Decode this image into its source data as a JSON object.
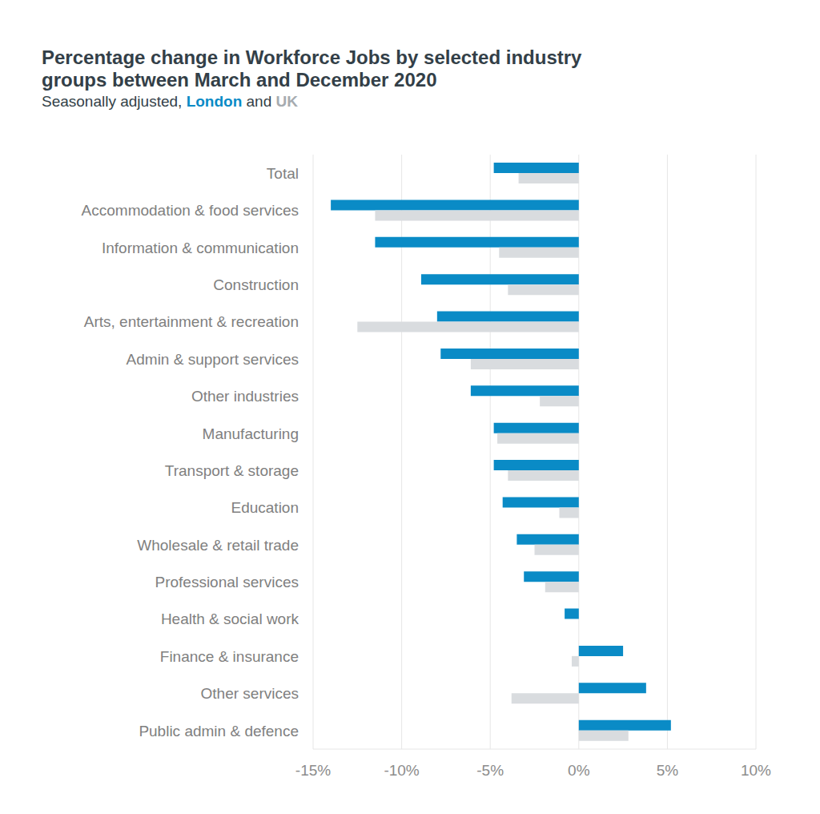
{
  "chart_data": {
    "type": "bar",
    "orientation": "horizontal",
    "title": "Percentage change in Workforce Jobs by selected industry groups between March and December 2020",
    "subtitle": "Seasonally adjusted, London and UK",
    "categories": [
      "Total",
      "Accommodation & food services",
      "Information & communication",
      "Construction",
      "Arts, entertainment & recreation",
      "Admin & support services",
      "Other industries",
      "Manufacturing",
      "Transport & storage",
      "Education",
      "Wholesale & retail trade",
      "Professional services",
      "Health & social work",
      "Finance & insurance",
      "Other services",
      "Public admin & defence"
    ],
    "series": [
      {
        "name": "London",
        "color": "#0a8bc6",
        "values": [
          -4.8,
          -14.0,
          -11.5,
          -8.9,
          -8.0,
          -7.8,
          -6.1,
          -4.8,
          -4.8,
          -4.3,
          -3.5,
          -3.1,
          -0.8,
          2.5,
          3.8,
          5.2
        ]
      },
      {
        "name": "UK",
        "color": "#d9dcdf",
        "values": [
          -3.4,
          -11.5,
          -4.5,
          -4.0,
          -12.5,
          -6.1,
          -2.2,
          -4.6,
          -4.0,
          -1.1,
          -2.5,
          -1.9,
          0,
          -0.4,
          -3.8,
          2.8
        ]
      }
    ],
    "xlim": [
      -15,
      10
    ],
    "xticks": [
      {
        "value": -15,
        "label": "-15%"
      },
      {
        "value": -10,
        "label": "-10%"
      },
      {
        "value": -5,
        "label": "-5%"
      },
      {
        "value": 0,
        "label": "0%"
      },
      {
        "value": 5,
        "label": "5%"
      },
      {
        "value": 10,
        "label": "10%"
      }
    ],
    "grid": true
  }
}
